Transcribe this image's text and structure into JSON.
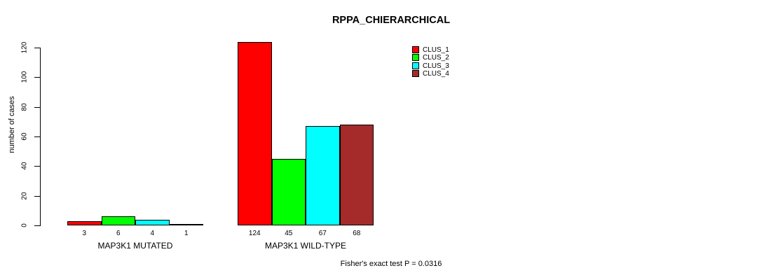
{
  "chart_data": {
    "type": "bar",
    "title": "RPPA_CHIERARCHICAL",
    "ylabel": "number of cases",
    "xlabel": "",
    "ylim": [
      0,
      120
    ],
    "yticks": [
      0,
      20,
      40,
      60,
      80,
      100,
      120
    ],
    "grid": false,
    "categories": [
      "MAP3K1 MUTATED",
      "MAP3K1 WILD-TYPE"
    ],
    "series": [
      {
        "name": "CLUS_1",
        "color": "#ff0000",
        "values": [
          3,
          124
        ]
      },
      {
        "name": "CLUS_2",
        "color": "#00ff00",
        "values": [
          6,
          45
        ]
      },
      {
        "name": "CLUS_3",
        "color": "#00ffff",
        "values": [
          4,
          67
        ]
      },
      {
        "name": "CLUS_4",
        "color": "#a52a2a",
        "values": [
          1,
          68
        ]
      }
    ],
    "bar_value_labels": [
      [
        "3",
        "6",
        "4",
        "1"
      ],
      [
        "124",
        "45",
        "67",
        "68"
      ]
    ],
    "legend_position": "top-right",
    "annotation": "Fisher's exact test P = 0.0316"
  }
}
